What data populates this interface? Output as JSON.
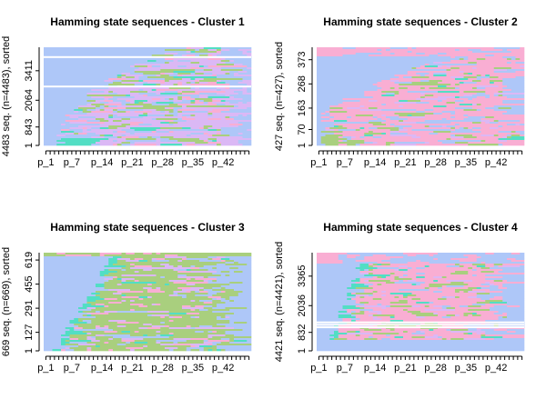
{
  "colors": {
    "blue": "#aec7f8",
    "pink": "#f9aed3",
    "lilac": "#dbb8f5",
    "green": "#a9cf7e",
    "teal": "#52dec4",
    "white": "#ffffff",
    "axis": "#000000"
  },
  "chart_data": [
    {
      "type": "sequence-index",
      "title": "Hamming state sequences - Cluster 1",
      "ylabel": "4483 seq. (n=4483), sorted",
      "n": 4483,
      "ytick_labels": [
        "1",
        "843",
        "2064",
        "3411"
      ],
      "ytick_values": [
        1,
        843,
        2064,
        3411
      ],
      "xtick_labels": [
        "p_1",
        "p_7",
        "p_14",
        "p_21",
        "p_28",
        "p_35",
        "p_42"
      ],
      "xtick_positions": [
        1,
        7,
        14,
        21,
        28,
        35,
        42
      ],
      "positions": 48,
      "grid": false,
      "legend": "none",
      "dominant_states": [
        "blue",
        "lilac"
      ],
      "white_row_fractions": [
        0.1,
        0.4
      ]
    },
    {
      "type": "sequence-index",
      "title": "Hamming state sequences - Cluster 2",
      "ylabel": "427 seq. (n=427), sorted",
      "n": 427,
      "ytick_labels": [
        "1",
        "70",
        "163",
        "268",
        "373"
      ],
      "ytick_values": [
        1,
        70,
        163,
        268,
        373
      ],
      "xtick_labels": [
        "p_1",
        "p_7",
        "p_14",
        "p_21",
        "p_28",
        "p_35",
        "p_42"
      ],
      "xtick_positions": [
        1,
        7,
        14,
        21,
        28,
        35,
        42
      ],
      "positions": 48,
      "grid": false,
      "legend": "none",
      "dominant_states": [
        "blue",
        "pink"
      ],
      "white_row_fractions": []
    },
    {
      "type": "sequence-index",
      "title": "Hamming state sequences - Cluster 3",
      "ylabel": "669 seq. (n=669), sorted",
      "n": 669,
      "ytick_labels": [
        "1",
        "127",
        "291",
        "455",
        "619"
      ],
      "ytick_values": [
        1,
        127,
        291,
        455,
        619
      ],
      "xtick_labels": [
        "p_1",
        "p_7",
        "p_14",
        "p_21",
        "p_28",
        "p_35",
        "p_42"
      ],
      "xtick_positions": [
        1,
        7,
        14,
        21,
        28,
        35,
        42
      ],
      "positions": 48,
      "grid": false,
      "legend": "none",
      "dominant_states": [
        "blue",
        "green"
      ],
      "white_row_fractions": []
    },
    {
      "type": "sequence-index",
      "title": "Hamming state sequences - Cluster 4",
      "ylabel": "4421 seq. (n=4421), sorted",
      "n": 4421,
      "ytick_labels": [
        "1",
        "832",
        "2036",
        "3365"
      ],
      "ytick_values": [
        1,
        832,
        2036,
        3365
      ],
      "xtick_labels": [
        "p_1",
        "p_7",
        "p_14",
        "p_21",
        "p_28",
        "p_35",
        "p_42"
      ],
      "xtick_positions": [
        1,
        7,
        14,
        21,
        28,
        35,
        42
      ],
      "positions": 48,
      "grid": false,
      "legend": "none",
      "dominant_states": [
        "blue",
        "pink"
      ],
      "white_row_fractions": [
        0.71,
        0.735,
        0.76
      ]
    }
  ]
}
